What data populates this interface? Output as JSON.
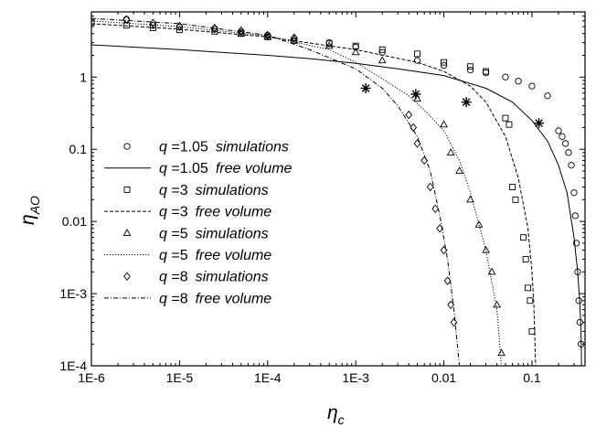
{
  "chart_data": {
    "type": "scatter",
    "xscale": "log",
    "yscale": "log",
    "xlim": [
      1e-06,
      0.4
    ],
    "ylim": [
      0.0001,
      8
    ],
    "xlabel_main": "η",
    "xlabel_sub": "c",
    "ylabel_main": "η",
    "ylabel_sub": "AO",
    "xticks": [
      {
        "value": 1e-06,
        "label": "1E-6"
      },
      {
        "value": 1e-05,
        "label": "1E-5"
      },
      {
        "value": 0.0001,
        "label": "1E-4"
      },
      {
        "value": 0.001,
        "label": "1E-3"
      },
      {
        "value": 0.01,
        "label": "0.01"
      },
      {
        "value": 0.1,
        "label": "0.1"
      }
    ],
    "yticks": [
      {
        "value": 0.0001,
        "label": "1E-4"
      },
      {
        "value": 0.001,
        "label": "1E-3"
      },
      {
        "value": 0.01,
        "label": "0.01"
      },
      {
        "value": 0.1,
        "label": "0.1"
      },
      {
        "value": 1,
        "label": "1"
      }
    ],
    "grid": false,
    "legend_position": "lower-left",
    "series": [
      {
        "name": "q =1.05  simulations",
        "kind": "markers",
        "marker": "circle",
        "x": [
          2.5e-06,
          5e-06,
          1e-05,
          2.5e-05,
          5e-05,
          0.0001,
          0.0002,
          0.0005,
          0.001,
          0.002,
          0.005,
          0.01,
          0.02,
          0.03,
          0.05,
          0.07,
          0.1,
          0.15,
          0.2,
          0.22,
          0.24,
          0.26,
          0.28,
          0.3,
          0.31,
          0.32,
          0.33,
          0.34,
          0.35,
          0.36
        ],
        "y": [
          6.3,
          5.2,
          4.9,
          4.6,
          4.2,
          3.8,
          3.4,
          3.0,
          2.6,
          2.2,
          1.7,
          1.45,
          1.25,
          1.15,
          1.0,
          0.88,
          0.75,
          0.55,
          0.18,
          0.15,
          0.12,
          0.09,
          0.06,
          0.025,
          0.012,
          0.005,
          0.002,
          0.0008,
          0.0004,
          0.0002
        ]
      },
      {
        "name": "q =1.05  free volume",
        "kind": "line",
        "dash": "solid",
        "x": [
          1e-06,
          1e-05,
          0.0001,
          0.0003,
          0.001,
          0.003,
          0.01,
          0.03,
          0.06,
          0.1,
          0.15,
          0.2,
          0.25,
          0.3,
          0.33,
          0.35,
          0.36,
          0.365
        ],
        "y": [
          2.8,
          2.4,
          2.0,
          1.8,
          1.55,
          1.3,
          1.05,
          0.7,
          0.45,
          0.25,
          0.13,
          0.06,
          0.025,
          0.006,
          0.002,
          0.0007,
          0.0003,
          0.0001
        ]
      },
      {
        "name": "q =3  simulations",
        "kind": "markers",
        "marker": "square",
        "x": [
          1e-06,
          2.5e-06,
          5e-06,
          1e-05,
          2.5e-05,
          5e-05,
          0.0001,
          0.0002,
          0.0005,
          0.001,
          0.002,
          0.005,
          0.01,
          0.02,
          0.03,
          0.05,
          0.055,
          0.06,
          0.065,
          0.08,
          0.085,
          0.09,
          0.095,
          0.1
        ],
        "y": [
          5.7,
          5.2,
          4.8,
          4.5,
          4.3,
          4.0,
          3.6,
          3.2,
          2.9,
          2.7,
          2.4,
          2.1,
          1.6,
          1.4,
          1.2,
          0.27,
          0.22,
          0.03,
          0.02,
          0.006,
          0.003,
          0.0012,
          0.0008,
          0.0003
        ]
      },
      {
        "name": "q =3  free volume",
        "kind": "line",
        "dash": "dashed",
        "x": [
          1e-06,
          1e-05,
          0.0001,
          0.001,
          0.005,
          0.01,
          0.02,
          0.03,
          0.05,
          0.07,
          0.09,
          0.1,
          0.105,
          0.11
        ],
        "y": [
          5.5,
          4.6,
          3.6,
          2.4,
          1.6,
          1.2,
          0.75,
          0.45,
          0.15,
          0.04,
          0.008,
          0.002,
          0.0007,
          0.0001
        ]
      },
      {
        "name": "q =5  simulations",
        "kind": "markers",
        "marker": "triangle",
        "x": [
          5e-05,
          0.0001,
          0.0002,
          0.0005,
          0.001,
          0.002,
          0.005,
          0.01,
          0.012,
          0.015,
          0.02,
          0.025,
          0.03,
          0.035,
          0.04,
          0.045
        ],
        "y": [
          4.0,
          3.6,
          3.2,
          2.7,
          2.2,
          1.7,
          0.5,
          0.22,
          0.09,
          0.05,
          0.02,
          0.009,
          0.004,
          0.002,
          0.0007,
          0.00015
        ]
      },
      {
        "name": "q =5  free volume",
        "kind": "line",
        "dash": "dotted",
        "x": [
          1e-06,
          1e-05,
          0.0001,
          0.0005,
          0.001,
          0.002,
          0.004,
          0.006,
          0.01,
          0.015,
          0.02,
          0.03,
          0.04,
          0.045
        ],
        "y": [
          6.0,
          5.0,
          3.7,
          2.4,
          1.6,
          0.95,
          0.55,
          0.35,
          0.18,
          0.07,
          0.025,
          0.004,
          0.0006,
          0.0001
        ]
      },
      {
        "name": "q =8  simulations",
        "kind": "markers",
        "marker": "diamond",
        "x": [
          2.5e-06,
          5e-06,
          1e-05,
          2.5e-05,
          5e-05,
          0.0001,
          0.0002,
          0.004,
          0.0045,
          0.005,
          0.006,
          0.007,
          0.008,
          0.009,
          0.01,
          0.011,
          0.012,
          0.013
        ],
        "y": [
          6.3,
          5.6,
          5.1,
          4.8,
          4.4,
          3.8,
          3.5,
          0.3,
          0.2,
          0.12,
          0.07,
          0.03,
          0.015,
          0.008,
          0.004,
          0.0015,
          0.0007,
          0.0004
        ]
      },
      {
        "name": "q =8  free volume",
        "kind": "line",
        "dash": "dashdot",
        "x": [
          1e-06,
          1e-05,
          0.0001,
          0.0003,
          0.001,
          0.002,
          0.003,
          0.005,
          0.007,
          0.009,
          0.011,
          0.013,
          0.015
        ],
        "y": [
          6.5,
          5.5,
          3.8,
          2.4,
          1.3,
          0.7,
          0.4,
          0.15,
          0.05,
          0.012,
          0.003,
          0.0006,
          0.0001
        ]
      },
      {
        "name": "",
        "kind": "markers",
        "marker": "asterisk",
        "x": [
          0.0013,
          0.0048,
          0.018,
          0.12
        ],
        "y": [
          0.7,
          0.58,
          0.45,
          0.23
        ]
      }
    ],
    "legend": [
      {
        "q": "q",
        "val": "=1.05",
        "kind": "simulations",
        "ref": 0
      },
      {
        "q": "q",
        "val": "=1.05",
        "kind": "free volume",
        "ref": 1
      },
      {
        "q": "q",
        "val": "=3",
        "kind": "simulations",
        "ref": 2
      },
      {
        "q": "q",
        "val": "=3",
        "kind": "free volume",
        "ref": 3
      },
      {
        "q": "q",
        "val": "=5",
        "kind": "simulations",
        "ref": 4
      },
      {
        "q": "q",
        "val": "=5",
        "kind": "free volume",
        "ref": 5
      },
      {
        "q": "q",
        "val": "=8",
        "kind": "simulations",
        "ref": 6
      },
      {
        "q": "q",
        "val": "=8",
        "kind": "free volume",
        "ref": 7
      }
    ]
  }
}
